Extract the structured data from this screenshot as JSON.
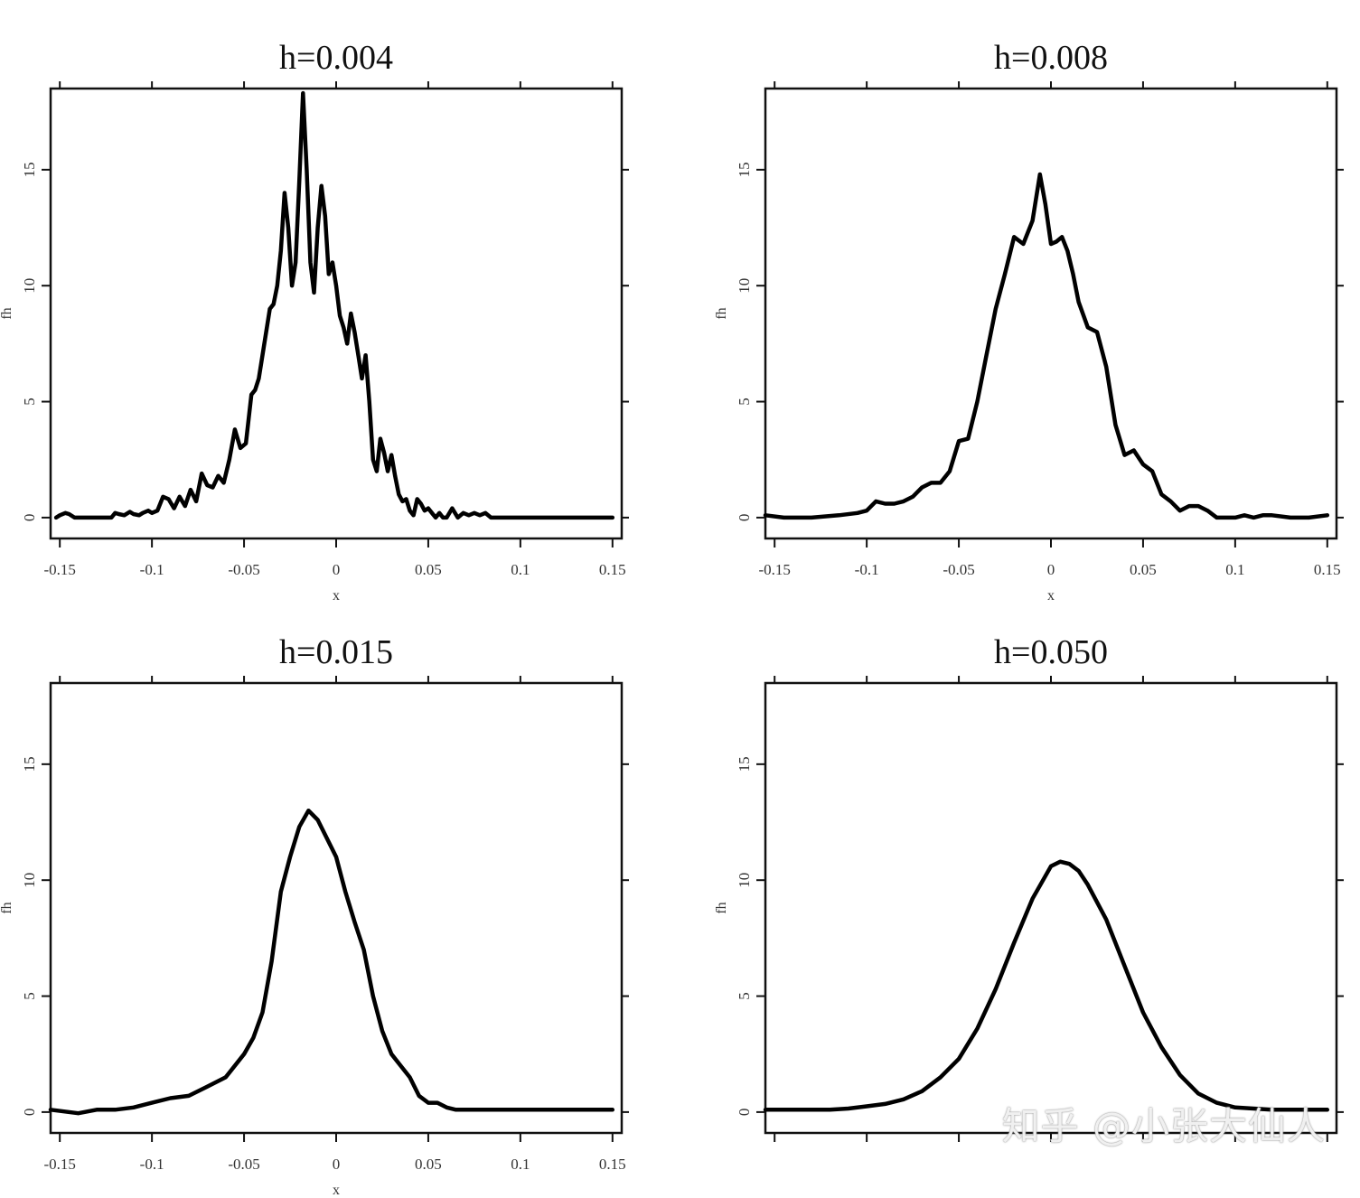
{
  "chart_data": [
    {
      "type": "line",
      "title": "h=0.004",
      "xlabel": "x",
      "ylabel": "fh",
      "xlim": [
        -0.155,
        0.155
      ],
      "ylim": [
        -0.9,
        18.5
      ],
      "xticks": [
        -0.15,
        -0.1,
        -0.05,
        0,
        0.05,
        0.1,
        0.15
      ],
      "xtick_labels": [
        "-0.15",
        "-0.1",
        "-0.05",
        "0",
        "0.05",
        "0.1",
        "0.15"
      ],
      "yticks": [
        0,
        5,
        10,
        15
      ],
      "ytick_labels": [
        "0",
        "5",
        "10",
        "15"
      ],
      "x": [
        -0.152,
        -0.15,
        -0.147,
        -0.145,
        -0.142,
        -0.138,
        -0.13,
        -0.122,
        -0.12,
        -0.118,
        -0.115,
        -0.112,
        -0.11,
        -0.107,
        -0.105,
        -0.102,
        -0.1,
        -0.097,
        -0.094,
        -0.091,
        -0.088,
        -0.085,
        -0.082,
        -0.079,
        -0.076,
        -0.073,
        -0.07,
        -0.067,
        -0.064,
        -0.061,
        -0.058,
        -0.055,
        -0.052,
        -0.049,
        -0.046,
        -0.044,
        -0.042,
        -0.039,
        -0.036,
        -0.034,
        -0.032,
        -0.03,
        -0.028,
        -0.026,
        -0.024,
        -0.022,
        -0.02,
        -0.018,
        -0.016,
        -0.014,
        -0.012,
        -0.01,
        -0.008,
        -0.006,
        -0.004,
        -0.002,
        0.0,
        0.002,
        0.004,
        0.006,
        0.008,
        0.01,
        0.012,
        0.014,
        0.016,
        0.018,
        0.02,
        0.022,
        0.024,
        0.026,
        0.028,
        0.03,
        0.032,
        0.034,
        0.036,
        0.038,
        0.04,
        0.042,
        0.044,
        0.046,
        0.048,
        0.05,
        0.052,
        0.054,
        0.056,
        0.058,
        0.06,
        0.063,
        0.066,
        0.069,
        0.072,
        0.075,
        0.078,
        0.081,
        0.084,
        0.087,
        0.09,
        0.093,
        0.096,
        0.099,
        0.102,
        0.105,
        0.108,
        0.111,
        0.114,
        0.117,
        0.12,
        0.123,
        0.126,
        0.129,
        0.132,
        0.135,
        0.138,
        0.141,
        0.144,
        0.147,
        0.15
      ],
      "y": [
        0.0,
        0.1,
        0.2,
        0.15,
        0.0,
        0.0,
        0.0,
        0.0,
        0.2,
        0.15,
        0.1,
        0.25,
        0.15,
        0.1,
        0.2,
        0.3,
        0.2,
        0.3,
        0.9,
        0.8,
        0.4,
        0.9,
        0.5,
        1.2,
        0.7,
        1.9,
        1.4,
        1.3,
        1.8,
        1.5,
        2.5,
        3.8,
        3.0,
        3.2,
        5.3,
        5.5,
        6.0,
        7.5,
        9.0,
        9.2,
        10.0,
        11.5,
        14.0,
        12.5,
        10.0,
        11.0,
        14.5,
        18.3,
        15.0,
        11.0,
        9.7,
        12.5,
        14.3,
        13.0,
        10.5,
        11.0,
        10.0,
        8.7,
        8.2,
        7.5,
        8.8,
        8.0,
        7.0,
        6.0,
        7.0,
        5.0,
        2.5,
        2.0,
        3.4,
        2.8,
        2.0,
        2.7,
        1.8,
        1.0,
        0.7,
        0.8,
        0.3,
        0.1,
        0.8,
        0.6,
        0.3,
        0.4,
        0.2,
        0.0,
        0.2,
        0.0,
        0.0,
        0.4,
        0.0,
        0.2,
        0.1,
        0.2,
        0.1,
        0.2,
        0.0,
        0.0,
        0.0,
        0.0,
        0.0,
        0.0,
        0.0,
        0.0,
        0.0,
        0.0,
        0.0,
        0.0,
        0.0,
        0.0,
        0.0,
        0.0,
        0.0,
        0.0,
        0.0,
        0.0,
        0.0,
        0.0,
        0.0
      ]
    },
    {
      "type": "line",
      "title": "h=0.008",
      "xlabel": "x",
      "ylabel": "fh",
      "xlim": [
        -0.155,
        0.155
      ],
      "ylim": [
        -0.9,
        18.5
      ],
      "xticks": [
        -0.15,
        -0.1,
        -0.05,
        0,
        0.05,
        0.1,
        0.15
      ],
      "xtick_labels": [
        "-0.15",
        "-0.1",
        "-0.05",
        "0",
        "0.05",
        "0.1",
        "0.15"
      ],
      "yticks": [
        0,
        5,
        10,
        15
      ],
      "ytick_labels": [
        "0",
        "5",
        "10",
        "15"
      ],
      "x": [
        -0.155,
        -0.145,
        -0.13,
        -0.115,
        -0.105,
        -0.1,
        -0.095,
        -0.09,
        -0.085,
        -0.08,
        -0.075,
        -0.07,
        -0.065,
        -0.06,
        -0.055,
        -0.05,
        -0.045,
        -0.04,
        -0.035,
        -0.03,
        -0.025,
        -0.02,
        -0.015,
        -0.01,
        -0.006,
        -0.003,
        0.0,
        0.003,
        0.006,
        0.009,
        0.012,
        0.015,
        0.02,
        0.025,
        0.03,
        0.035,
        0.04,
        0.045,
        0.05,
        0.055,
        0.06,
        0.065,
        0.07,
        0.075,
        0.08,
        0.085,
        0.09,
        0.095,
        0.1,
        0.105,
        0.11,
        0.115,
        0.12,
        0.13,
        0.14,
        0.15
      ],
      "y": [
        0.1,
        0.0,
        0.0,
        0.1,
        0.2,
        0.3,
        0.7,
        0.6,
        0.6,
        0.7,
        0.9,
        1.3,
        1.5,
        1.5,
        2.0,
        3.3,
        3.4,
        5.0,
        7.0,
        9.0,
        10.5,
        12.1,
        11.8,
        12.8,
        14.8,
        13.5,
        11.8,
        11.9,
        12.1,
        11.5,
        10.5,
        9.3,
        8.2,
        8.0,
        6.5,
        4.0,
        2.7,
        2.9,
        2.3,
        2.0,
        1.0,
        0.7,
        0.3,
        0.5,
        0.5,
        0.3,
        0.0,
        0.0,
        0.0,
        0.1,
        0.0,
        0.1,
        0.1,
        0.0,
        0.0,
        0.1
      ]
    },
    {
      "type": "line",
      "title": "h=0.015",
      "xlabel": "x",
      "ylabel": "fh",
      "xlim": [
        -0.155,
        0.155
      ],
      "ylim": [
        -0.9,
        18.5
      ],
      "xticks": [
        -0.15,
        -0.1,
        -0.05,
        0,
        0.05,
        0.1,
        0.15
      ],
      "xtick_labels": [
        "-0.15",
        "-0.1",
        "-0.05",
        "0",
        "0.05",
        "0.1",
        "0.15"
      ],
      "yticks": [
        0,
        5,
        10,
        15
      ],
      "ytick_labels": [
        "0",
        "5",
        "10",
        "15"
      ],
      "x": [
        -0.155,
        -0.14,
        -0.13,
        -0.12,
        -0.11,
        -0.1,
        -0.09,
        -0.08,
        -0.07,
        -0.06,
        -0.05,
        -0.045,
        -0.04,
        -0.035,
        -0.03,
        -0.025,
        -0.02,
        -0.015,
        -0.01,
        -0.005,
        0.0,
        0.005,
        0.01,
        0.015,
        0.02,
        0.025,
        0.03,
        0.035,
        0.04,
        0.045,
        0.05,
        0.055,
        0.06,
        0.065,
        0.07,
        0.08,
        0.09,
        0.1,
        0.11,
        0.12,
        0.13,
        0.14,
        0.15
      ],
      "y": [
        0.1,
        -0.05,
        0.1,
        0.1,
        0.2,
        0.4,
        0.6,
        0.7,
        1.1,
        1.5,
        2.5,
        3.2,
        4.3,
        6.5,
        9.5,
        11.0,
        12.3,
        13.0,
        12.6,
        11.8,
        11.0,
        9.5,
        8.2,
        7.0,
        5.0,
        3.5,
        2.5,
        2.0,
        1.5,
        0.7,
        0.4,
        0.4,
        0.2,
        0.1,
        0.1,
        0.1,
        0.1,
        0.1,
        0.1,
        0.1,
        0.1,
        0.1,
        0.1
      ]
    },
    {
      "type": "line",
      "title": "h=0.050",
      "xlabel": "",
      "ylabel": "fh",
      "xlim": [
        -0.155,
        0.155
      ],
      "ylim": [
        -0.9,
        18.5
      ],
      "xticks": [
        -0.15,
        -0.1,
        -0.05,
        0,
        0.05,
        0.1,
        0.15
      ],
      "xtick_labels": [],
      "yticks": [
        0,
        5,
        10,
        15
      ],
      "ytick_labels": [
        "0",
        "5",
        "10",
        "15"
      ],
      "x": [
        -0.155,
        -0.14,
        -0.12,
        -0.11,
        -0.1,
        -0.09,
        -0.08,
        -0.07,
        -0.06,
        -0.05,
        -0.04,
        -0.03,
        -0.02,
        -0.01,
        0.0,
        0.005,
        0.01,
        0.015,
        0.02,
        0.03,
        0.04,
        0.05,
        0.06,
        0.07,
        0.08,
        0.09,
        0.1,
        0.11,
        0.12,
        0.13,
        0.14,
        0.15
      ],
      "y": [
        0.1,
        0.1,
        0.1,
        0.15,
        0.25,
        0.35,
        0.55,
        0.9,
        1.5,
        2.3,
        3.6,
        5.3,
        7.3,
        9.2,
        10.6,
        10.8,
        10.7,
        10.4,
        9.8,
        8.3,
        6.3,
        4.3,
        2.8,
        1.6,
        0.8,
        0.4,
        0.2,
        0.15,
        0.1,
        0.1,
        0.1,
        0.1
      ]
    }
  ],
  "watermark": "知乎 @小张大仙人"
}
